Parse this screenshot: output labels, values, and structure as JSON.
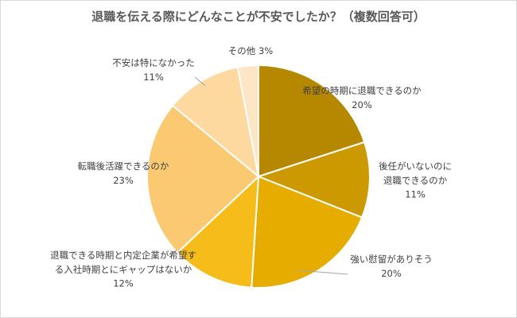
{
  "chart_data": {
    "type": "pie",
    "title": "退職を伝える際にどんなことが不安でしたか？（複数回答可）",
    "slices": [
      {
        "label": [
          "希望の時期に退職できるのか"
        ],
        "pct_text": "20%",
        "value": 20,
        "color": "#b58800"
      },
      {
        "label": [
          "後任がいないのに",
          "退職できるのか"
        ],
        "pct_text": "11%",
        "value": 11,
        "color": "#cc9a00"
      },
      {
        "label": [
          "強い慰留がありそう"
        ],
        "pct_text": "20%",
        "value": 20,
        "color": "#e6ac00"
      },
      {
        "label": [
          "退職できる時期と内定企業が希望す",
          "る入社時期とにギャップはないか"
        ],
        "pct_text": "12%",
        "value": 12,
        "color": "#f5bc1a"
      },
      {
        "label": [
          "転職後活躍できるのか"
        ],
        "pct_text": "23%",
        "value": 23,
        "color": "#fbc971"
      },
      {
        "label": [
          "不安は特になかった"
        ],
        "pct_text": "11%",
        "value": 11,
        "color": "#fdd9a0"
      },
      {
        "label": [
          "その他"
        ],
        "pct_text": "3%",
        "value": 3,
        "color": "#fde6c6"
      }
    ]
  }
}
